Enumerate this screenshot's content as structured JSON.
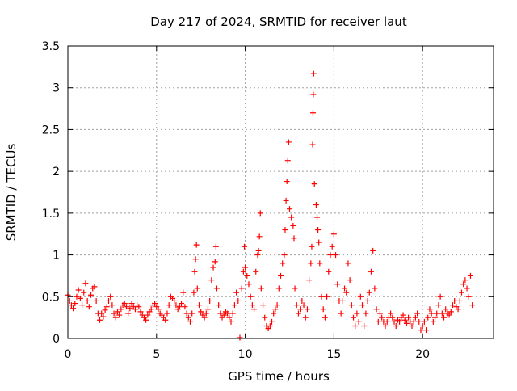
{
  "chart_data": {
    "type": "scatter",
    "title": "Day 217 of 2024, SRMTID for receiver laut",
    "xlabel": "GPS time / hours",
    "ylabel": "SRMTID / TECUs",
    "xlim": [
      0,
      24
    ],
    "ylim": [
      0,
      3.5
    ],
    "x_ticks": [
      0,
      5,
      10,
      15,
      20
    ],
    "x_tick_labels": [
      "0",
      "5",
      "10",
      "15",
      "20"
    ],
    "y_ticks": [
      0,
      0.5,
      1,
      1.5,
      2,
      2.5,
      3,
      3.5
    ],
    "y_tick_labels": [
      "0",
      "0.5",
      "1",
      "1.5",
      "2",
      "2.5",
      "3",
      "3.5"
    ],
    "grid": true,
    "marker": "plus",
    "series": [
      {
        "name": "SRMTID",
        "color": "#ff0000",
        "points": [
          [
            0.0,
            0.52
          ],
          [
            0.1,
            0.45
          ],
          [
            0.2,
            0.4
          ],
          [
            0.3,
            0.36
          ],
          [
            0.4,
            0.42
          ],
          [
            0.5,
            0.5
          ],
          [
            0.6,
            0.58
          ],
          [
            0.7,
            0.48
          ],
          [
            0.8,
            0.4
          ],
          [
            0.9,
            0.55
          ],
          [
            1.0,
            0.66
          ],
          [
            1.1,
            0.45
          ],
          [
            1.2,
            0.38
          ],
          [
            1.3,
            0.52
          ],
          [
            1.4,
            0.6
          ],
          [
            1.5,
            0.62
          ],
          [
            1.6,
            0.45
          ],
          [
            1.7,
            0.3
          ],
          [
            1.8,
            0.22
          ],
          [
            1.9,
            0.3
          ],
          [
            2.0,
            0.26
          ],
          [
            2.1,
            0.34
          ],
          [
            2.2,
            0.38
          ],
          [
            2.3,
            0.45
          ],
          [
            2.4,
            0.5
          ],
          [
            2.5,
            0.4
          ],
          [
            2.6,
            0.3
          ],
          [
            2.7,
            0.25
          ],
          [
            2.8,
            0.32
          ],
          [
            2.9,
            0.28
          ],
          [
            3.0,
            0.35
          ],
          [
            3.1,
            0.4
          ],
          [
            3.2,
            0.42
          ],
          [
            3.3,
            0.38
          ],
          [
            3.4,
            0.3
          ],
          [
            3.5,
            0.36
          ],
          [
            3.6,
            0.42
          ],
          [
            3.7,
            0.38
          ],
          [
            3.8,
            0.35
          ],
          [
            3.9,
            0.4
          ],
          [
            4.0,
            0.38
          ],
          [
            4.1,
            0.32
          ],
          [
            4.2,
            0.28
          ],
          [
            4.3,
            0.25
          ],
          [
            4.4,
            0.22
          ],
          [
            4.5,
            0.28
          ],
          [
            4.6,
            0.32
          ],
          [
            4.7,
            0.35
          ],
          [
            4.8,
            0.4
          ],
          [
            4.9,
            0.42
          ],
          [
            5.0,
            0.38
          ],
          [
            5.1,
            0.35
          ],
          [
            5.2,
            0.3
          ],
          [
            5.3,
            0.28
          ],
          [
            5.4,
            0.25
          ],
          [
            5.5,
            0.22
          ],
          [
            5.6,
            0.3
          ],
          [
            5.7,
            0.4
          ],
          [
            5.8,
            0.5
          ],
          [
            5.9,
            0.48
          ],
          [
            6.0,
            0.45
          ],
          [
            6.1,
            0.4
          ],
          [
            6.2,
            0.35
          ],
          [
            6.3,
            0.38
          ],
          [
            6.4,
            0.42
          ],
          [
            6.5,
            0.55
          ],
          [
            6.6,
            0.38
          ],
          [
            6.7,
            0.3
          ],
          [
            6.8,
            0.25
          ],
          [
            6.9,
            0.2
          ],
          [
            7.0,
            0.3
          ],
          [
            7.1,
            0.55
          ],
          [
            7.15,
            0.8
          ],
          [
            7.2,
            0.95
          ],
          [
            7.25,
            1.12
          ],
          [
            7.3,
            0.6
          ],
          [
            7.4,
            0.4
          ],
          [
            7.5,
            0.32
          ],
          [
            7.6,
            0.28
          ],
          [
            7.7,
            0.25
          ],
          [
            7.8,
            0.3
          ],
          [
            7.9,
            0.35
          ],
          [
            8.0,
            0.45
          ],
          [
            8.1,
            0.7
          ],
          [
            8.2,
            0.85
          ],
          [
            8.3,
            0.92
          ],
          [
            8.35,
            1.1
          ],
          [
            8.4,
            0.6
          ],
          [
            8.5,
            0.4
          ],
          [
            8.6,
            0.3
          ],
          [
            8.7,
            0.25
          ],
          [
            8.8,
            0.28
          ],
          [
            8.9,
            0.32
          ],
          [
            9.0,
            0.3
          ],
          [
            9.1,
            0.25
          ],
          [
            9.2,
            0.2
          ],
          [
            9.3,
            0.3
          ],
          [
            9.4,
            0.4
          ],
          [
            9.5,
            0.55
          ],
          [
            9.6,
            0.45
          ],
          [
            9.7,
            0.01
          ],
          [
            9.8,
            0.6
          ],
          [
            9.9,
            0.8
          ],
          [
            9.95,
            1.1
          ],
          [
            10.0,
            0.85
          ],
          [
            10.1,
            0.75
          ],
          [
            10.2,
            0.65
          ],
          [
            10.3,
            0.5
          ],
          [
            10.4,
            0.4
          ],
          [
            10.5,
            0.35
          ],
          [
            10.6,
            0.8
          ],
          [
            10.7,
            1.0
          ],
          [
            10.75,
            1.05
          ],
          [
            10.8,
            1.22
          ],
          [
            10.85,
            1.5
          ],
          [
            10.9,
            0.6
          ],
          [
            11.0,
            0.4
          ],
          [
            11.1,
            0.25
          ],
          [
            11.2,
            0.15
          ],
          [
            11.3,
            0.12
          ],
          [
            11.4,
            0.15
          ],
          [
            11.5,
            0.2
          ],
          [
            11.6,
            0.3
          ],
          [
            11.7,
            0.35
          ],
          [
            11.8,
            0.4
          ],
          [
            11.9,
            0.6
          ],
          [
            12.0,
            0.75
          ],
          [
            12.1,
            0.9
          ],
          [
            12.2,
            1.0
          ],
          [
            12.25,
            1.3
          ],
          [
            12.3,
            1.65
          ],
          [
            12.35,
            1.88
          ],
          [
            12.4,
            2.13
          ],
          [
            12.45,
            2.35
          ],
          [
            12.5,
            1.55
          ],
          [
            12.6,
            1.45
          ],
          [
            12.7,
            1.35
          ],
          [
            12.75,
            1.2
          ],
          [
            12.8,
            0.6
          ],
          [
            12.9,
            0.4
          ],
          [
            13.0,
            0.3
          ],
          [
            13.1,
            0.35
          ],
          [
            13.2,
            0.45
          ],
          [
            13.3,
            0.4
          ],
          [
            13.4,
            0.25
          ],
          [
            13.5,
            0.35
          ],
          [
            13.6,
            0.7
          ],
          [
            13.7,
            0.9
          ],
          [
            13.75,
            1.1
          ],
          [
            13.8,
            2.32
          ],
          [
            13.82,
            2.7
          ],
          [
            13.84,
            2.92
          ],
          [
            13.86,
            3.17
          ],
          [
            13.9,
            1.85
          ],
          [
            14.0,
            1.6
          ],
          [
            14.05,
            1.45
          ],
          [
            14.1,
            1.3
          ],
          [
            14.15,
            1.15
          ],
          [
            14.2,
            0.9
          ],
          [
            14.3,
            0.5
          ],
          [
            14.4,
            0.35
          ],
          [
            14.5,
            0.25
          ],
          [
            14.6,
            0.5
          ],
          [
            14.7,
            0.8
          ],
          [
            14.8,
            1.0
          ],
          [
            14.9,
            1.1
          ],
          [
            15.0,
            1.25
          ],
          [
            15.1,
            1.0
          ],
          [
            15.2,
            0.65
          ],
          [
            15.3,
            0.45
          ],
          [
            15.4,
            0.3
          ],
          [
            15.5,
            0.45
          ],
          [
            15.6,
            0.6
          ],
          [
            15.7,
            0.55
          ],
          [
            15.8,
            0.9
          ],
          [
            15.9,
            0.7
          ],
          [
            16.0,
            0.4
          ],
          [
            16.1,
            0.25
          ],
          [
            16.2,
            0.15
          ],
          [
            16.3,
            0.3
          ],
          [
            16.4,
            0.2
          ],
          [
            16.5,
            0.5
          ],
          [
            16.6,
            0.4
          ],
          [
            16.7,
            0.15
          ],
          [
            16.8,
            0.3
          ],
          [
            16.9,
            0.45
          ],
          [
            17.0,
            0.55
          ],
          [
            17.1,
            0.8
          ],
          [
            17.2,
            1.05
          ],
          [
            17.3,
            0.6
          ],
          [
            17.4,
            0.35
          ],
          [
            17.5,
            0.2
          ],
          [
            17.6,
            0.3
          ],
          [
            17.7,
            0.25
          ],
          [
            17.8,
            0.2
          ],
          [
            17.9,
            0.15
          ],
          [
            18.0,
            0.2
          ],
          [
            18.1,
            0.25
          ],
          [
            18.2,
            0.3
          ],
          [
            18.3,
            0.25
          ],
          [
            18.4,
            0.2
          ],
          [
            18.5,
            0.15
          ],
          [
            18.6,
            0.22
          ],
          [
            18.7,
            0.2
          ],
          [
            18.8,
            0.25
          ],
          [
            18.9,
            0.28
          ],
          [
            19.0,
            0.22
          ],
          [
            19.1,
            0.18
          ],
          [
            19.2,
            0.25
          ],
          [
            19.3,
            0.2
          ],
          [
            19.4,
            0.15
          ],
          [
            19.5,
            0.2
          ],
          [
            19.6,
            0.25
          ],
          [
            19.7,
            0.3
          ],
          [
            19.8,
            0.2
          ],
          [
            19.9,
            0.1
          ],
          [
            20.0,
            0.15
          ],
          [
            20.1,
            0.2
          ],
          [
            20.2,
            0.1
          ],
          [
            20.3,
            0.25
          ],
          [
            20.4,
            0.35
          ],
          [
            20.5,
            0.3
          ],
          [
            20.6,
            0.2
          ],
          [
            20.7,
            0.25
          ],
          [
            20.8,
            0.3
          ],
          [
            20.9,
            0.4
          ],
          [
            21.0,
            0.5
          ],
          [
            21.1,
            0.3
          ],
          [
            21.2,
            0.25
          ],
          [
            21.3,
            0.35
          ],
          [
            21.4,
            0.3
          ],
          [
            21.5,
            0.28
          ],
          [
            21.6,
            0.32
          ],
          [
            21.7,
            0.4
          ],
          [
            21.8,
            0.45
          ],
          [
            21.9,
            0.38
          ],
          [
            22.0,
            0.35
          ],
          [
            22.1,
            0.45
          ],
          [
            22.2,
            0.55
          ],
          [
            22.3,
            0.65
          ],
          [
            22.4,
            0.7
          ],
          [
            22.5,
            0.6
          ],
          [
            22.6,
            0.5
          ],
          [
            22.7,
            0.75
          ],
          [
            22.8,
            0.4
          ]
        ]
      }
    ]
  }
}
